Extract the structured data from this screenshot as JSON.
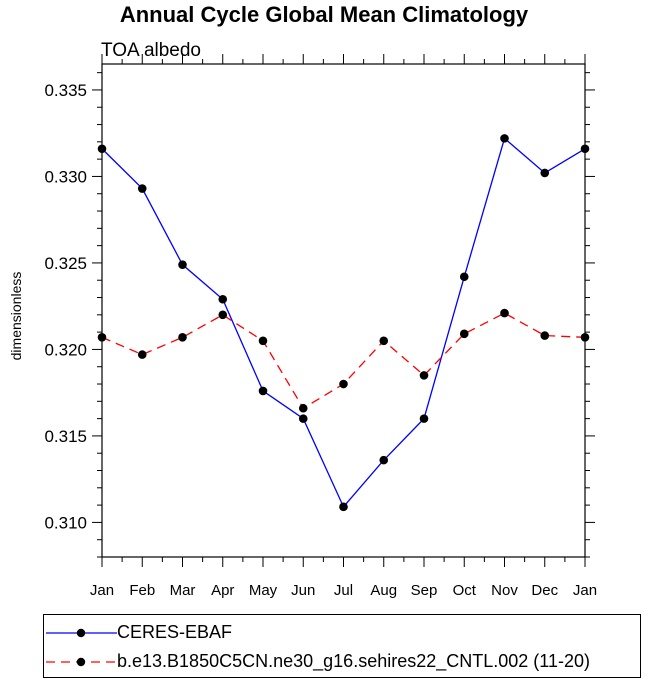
{
  "chart_data": {
    "type": "line",
    "title": "Annual Cycle Global Mean Climatology",
    "subtitle": "TOA albedo",
    "xlabel": "",
    "ylabel": "dimensionless",
    "categories": [
      "Jan",
      "Feb",
      "Mar",
      "Apr",
      "May",
      "Jun",
      "Jul",
      "Aug",
      "Sep",
      "Oct",
      "Nov",
      "Dec",
      "Jan"
    ],
    "ylim": [
      0.308,
      0.3365
    ],
    "yticks": [
      "0.310",
      "0.315",
      "0.320",
      "0.325",
      "0.330",
      "0.335"
    ],
    "grid": false,
    "legend_position": "bottom",
    "series": [
      {
        "name": "CERES-EBAF",
        "color": "#0000ff",
        "dash": "solid",
        "values": [
          0.3316,
          0.3293,
          0.3249,
          0.3229,
          0.3176,
          0.316,
          0.3109,
          0.3136,
          0.316,
          0.3242,
          0.3322,
          0.3302,
          0.3316
        ]
      },
      {
        "name": "b.e13.B1850C5CN.ne30_g16.sehires22_CNTL.002 (11-20)",
        "color": "#ff0000",
        "dash": "dashed",
        "values": [
          0.3207,
          0.3197,
          0.3207,
          0.322,
          0.3205,
          0.3166,
          0.318,
          0.3205,
          0.3185,
          0.3209,
          0.3221,
          0.3208,
          0.3207
        ]
      }
    ]
  }
}
